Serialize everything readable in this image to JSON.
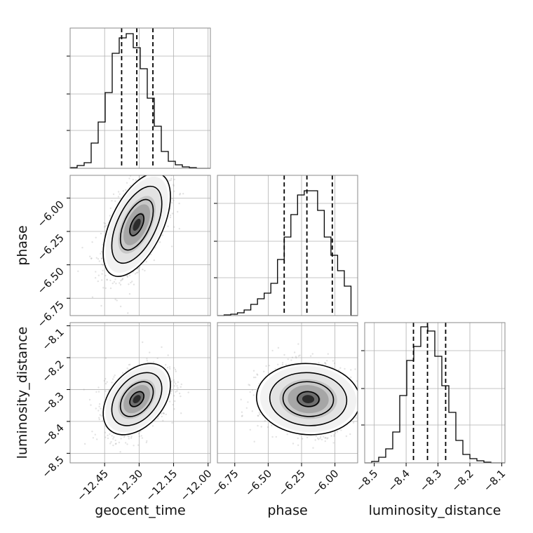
{
  "chart_data": {
    "type": "corner",
    "parameters": [
      "geocent_time",
      "phase",
      "luminosity_distance"
    ],
    "axis_labels": {
      "geocent_time": "geocent_time",
      "phase": "phase",
      "luminosity_distance": "luminosity_distance"
    },
    "ranges": {
      "geocent_time": [
        -12.6,
        -11.99
      ],
      "phase": [
        -6.88,
        -5.83
      ],
      "luminosity_distance": [
        -8.53,
        -8.09
      ]
    },
    "tick_values": {
      "geocent_time": [
        -12.45,
        -12.3,
        -12.15,
        -12.0
      ],
      "phase": [
        -6.75,
        -6.5,
        -6.25,
        -6.0
      ],
      "luminosity_distance": [
        -8.5,
        -8.4,
        -8.3,
        -8.2,
        -8.1
      ]
    },
    "tick_labels": {
      "geocent_time": [
        "−12.45",
        "−12.30",
        "−12.15",
        "−12.00"
      ],
      "phase": [
        "−6.75",
        "−6.50",
        "−6.25",
        "−6.00"
      ],
      "luminosity_distance_y": [
        "−8.1",
        "−8.2",
        "−8.3",
        "−8.4",
        "−8.5"
      ],
      "luminosity_distance_x": [
        "−8.5",
        "−8.4",
        "−8.3",
        "−8.2",
        "−8.1"
      ]
    },
    "quantiles": {
      "geocent_time": [
        -12.376,
        -12.31,
        -12.24
      ],
      "phase": [
        -6.38,
        -6.21,
        -6.02
      ],
      "luminosity_distance": [
        -8.377,
        -8.333,
        -8.276
      ]
    },
    "histograms": {
      "geocent_time": [
        0.005,
        0.02,
        0.04,
        0.18,
        0.33,
        0.54,
        0.82,
        0.93,
        0.96,
        0.86,
        0.71,
        0.5,
        0.3,
        0.12,
        0.05,
        0.025,
        0.01,
        0.005,
        0.0,
        0.0
      ],
      "phase": [
        0.0,
        0.005,
        0.01,
        0.02,
        0.04,
        0.08,
        0.12,
        0.16,
        0.23,
        0.4,
        0.56,
        0.72,
        0.86,
        0.89,
        0.89,
        0.75,
        0.56,
        0.43,
        0.32,
        0.21,
        0.0
      ],
      "luminosity_distance": [
        0.0,
        0.01,
        0.04,
        0.1,
        0.22,
        0.48,
        0.73,
        0.83,
        0.97,
        0.94,
        0.76,
        0.55,
        0.36,
        0.16,
        0.06,
        0.03,
        0.015,
        0.005,
        0.0,
        0.0
      ]
    },
    "gaussian_2d": {
      "means": {
        "geocent_time": -12.31,
        "phase": -6.2,
        "luminosity_distance": -8.33
      },
      "sigmas": {
        "geocent_time": 0.068,
        "phase": 0.18,
        "luminosity_distance": 0.052
      },
      "correlations": {
        "geocent_time|phase": 0.55,
        "geocent_time|luminosity_distance": 0.4,
        "phase|luminosity_distance": -0.05
      }
    },
    "grid": true,
    "colors": {
      "line": "#000000",
      "grid": "#b0b0b0",
      "frame": "#888888",
      "points": "#9a9a9a"
    }
  }
}
